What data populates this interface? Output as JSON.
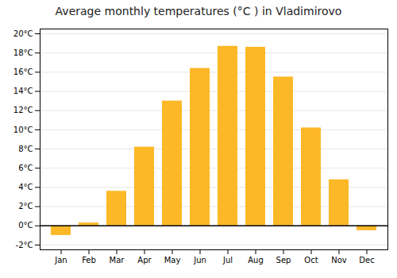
{
  "chart_data": {
    "type": "bar",
    "title": "Average monthly temperatures (°C ) in Vladimirovo",
    "categories": [
      "Jan",
      "Feb",
      "Mar",
      "Apr",
      "May",
      "Jun",
      "Jul",
      "Aug",
      "Sep",
      "Oct",
      "Nov",
      "Dec"
    ],
    "values": [
      -1.0,
      0.3,
      3.6,
      8.2,
      13.0,
      16.4,
      18.7,
      18.6,
      15.5,
      10.2,
      4.8,
      -0.5
    ],
    "color": "#FDB827",
    "ylim": [
      -2.5,
      20.5
    ],
    "yticks": [
      {
        "value": -2,
        "label": "-2°C"
      },
      {
        "value": 0,
        "label": "0°C"
      },
      {
        "value": 2,
        "label": "2°C"
      },
      {
        "value": 4,
        "label": "4°C"
      },
      {
        "value": 6,
        "label": "6°C"
      },
      {
        "value": 8,
        "label": "8°C"
      },
      {
        "value": 10,
        "label": "10°C"
      },
      {
        "value": 12,
        "label": "12°C"
      },
      {
        "value": 14,
        "label": "14°C"
      },
      {
        "value": 16,
        "label": "16°C"
      },
      {
        "value": 18,
        "label": "18°C"
      },
      {
        "value": 20,
        "label": "20°C"
      }
    ],
    "grid": true
  }
}
